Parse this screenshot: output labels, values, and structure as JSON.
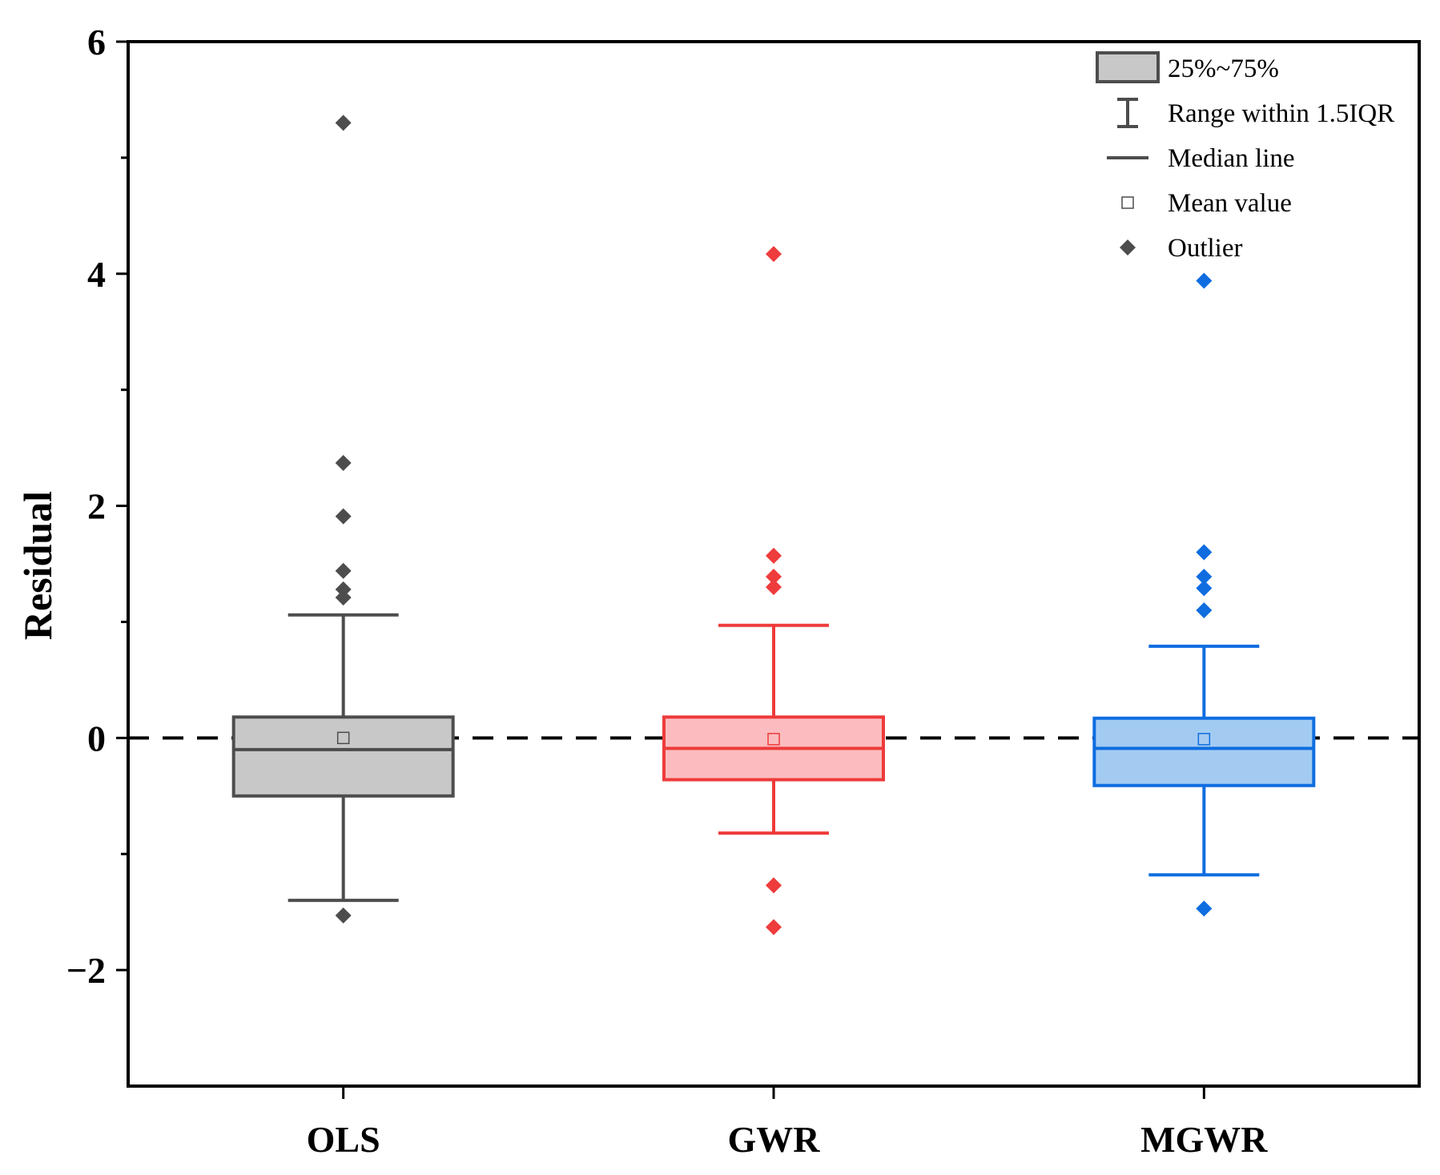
{
  "chart_data": {
    "type": "box",
    "title": "",
    "xlabel": "",
    "ylabel": "Residual",
    "ylim": [
      -3,
      6
    ],
    "yticks": [
      -2,
      0,
      2,
      4,
      6
    ],
    "ytick_labels": [
      "−2",
      "0",
      "2",
      "4",
      "6"
    ],
    "minor_yticks": [
      -1,
      1,
      3,
      5
    ],
    "reference_line": 0,
    "categories": [
      "OLS",
      "GWR",
      "MGWR"
    ],
    "series": [
      {
        "name": "OLS",
        "stroke": "#4d4d4d",
        "fill": "#c8c8c8",
        "q1": -0.5,
        "median": -0.1,
        "q3": 0.18,
        "whisker_low": -1.4,
        "whisker_high": 1.06,
        "mean": 0.0,
        "outliers": [
          5.3,
          2.37,
          1.91,
          1.44,
          1.28,
          1.21,
          -1.53
        ]
      },
      {
        "name": "GWR",
        "stroke": "#ee3b3b",
        "fill": "#fbbcbf",
        "q1": -0.36,
        "median": -0.09,
        "q3": 0.18,
        "whisker_low": -0.82,
        "whisker_high": 0.97,
        "mean": -0.01,
        "outliers": [
          4.17,
          1.57,
          1.39,
          1.3,
          -1.27,
          -1.63
        ]
      },
      {
        "name": "MGWR",
        "stroke": "#0f6de0",
        "fill": "#a3cbf2",
        "q1": -0.41,
        "median": -0.09,
        "q3": 0.17,
        "whisker_low": -1.18,
        "whisker_high": 0.79,
        "mean": -0.01,
        "outliers": [
          3.94,
          1.6,
          1.39,
          1.29,
          1.1,
          -1.47
        ]
      }
    ],
    "legend": {
      "position": "top-right",
      "items": [
        {
          "key": "box",
          "label": "25%~75%"
        },
        {
          "key": "whisker",
          "label": "Range within 1.5IQR"
        },
        {
          "key": "median",
          "label": "Median line"
        },
        {
          "key": "mean",
          "label": "Mean value"
        },
        {
          "key": "outlier",
          "label": "Outlier"
        }
      ],
      "color": "#4d4d4d",
      "box_fill": "#c8c8c8"
    }
  }
}
